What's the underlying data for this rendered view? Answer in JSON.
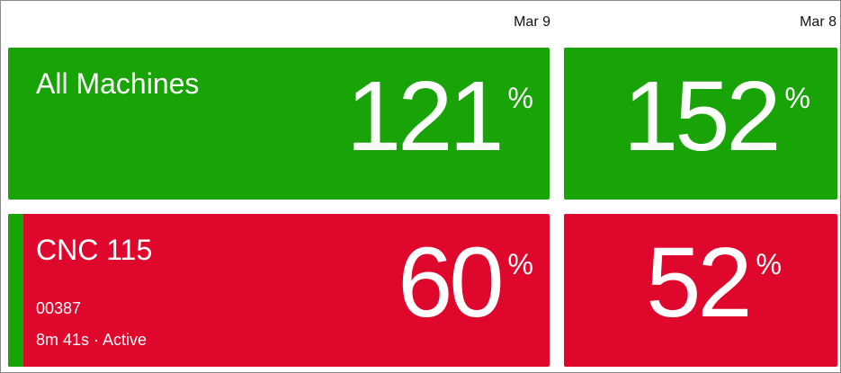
{
  "columns": [
    "Mar 9",
    "Mar 8"
  ],
  "unit": "%",
  "rows": [
    {
      "name": "All Machines",
      "values": [
        121,
        152
      ]
    },
    {
      "name": "CNC 115",
      "code": "00387",
      "status": "8m 41s · Active",
      "values": [
        60,
        52
      ]
    }
  ]
}
